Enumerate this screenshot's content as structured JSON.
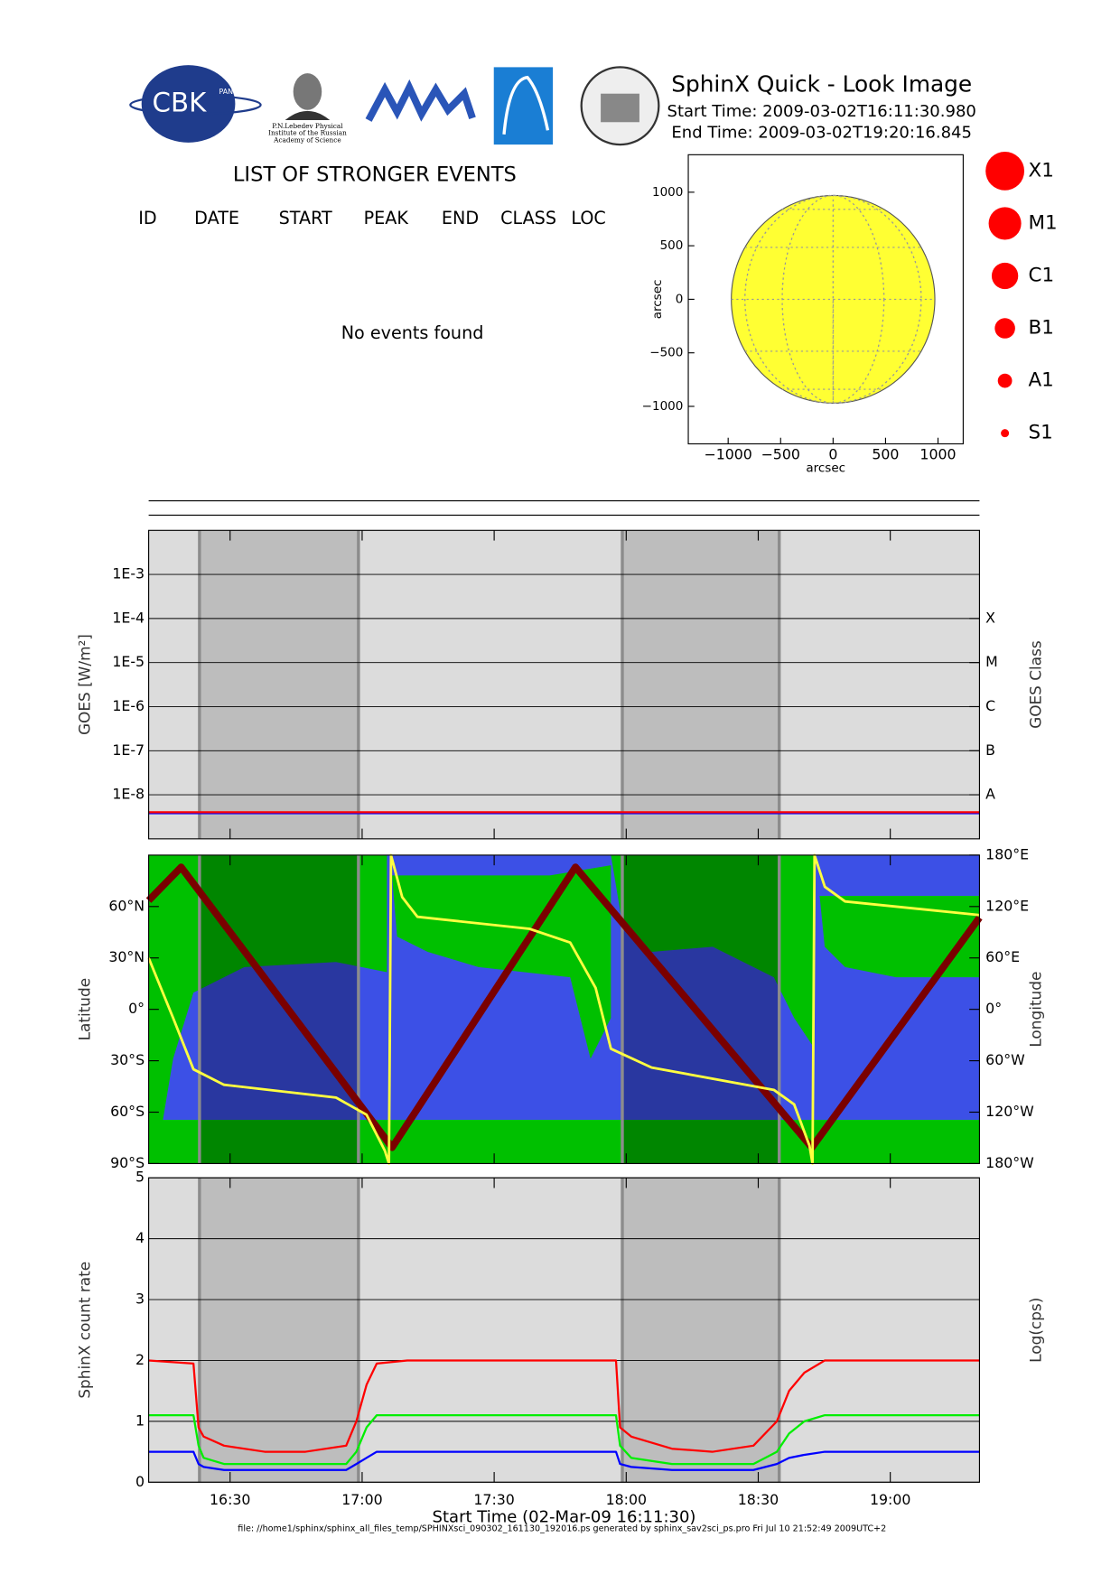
{
  "header": {
    "title": "SphinX Quick - Look Image",
    "start": "Start Time: 2009-03-02T16:11:30.980",
    "end": "End Time: 2009-03-02T19:20:16.845",
    "cbk": "CBK",
    "pan": "PAN",
    "lebedev": [
      "P.N.Lebedev Physical",
      "Institute of the Russian",
      "Academy of Science"
    ]
  },
  "events": {
    "title": "LIST OF STRONGER EVENTS",
    "columns": [
      "ID",
      "DATE",
      "START",
      "PEAK",
      "END",
      "CLASS",
      "LOC"
    ],
    "empty": "No events found"
  },
  "footer": "file: //home1/sphinx/sphinx_all_files_temp/SPHINXsci_090302_161130_192016.ps generated by sphinx_sav2sci_ps.pro Fri Jul 10 21:52:49 2009UTC+2",
  "chart_data": [
    {
      "type": "disk",
      "xlabel": "arcsec",
      "ylabel": "arcsec",
      "xlim": [
        -1380,
        1240
      ],
      "ylim": [
        -1350,
        1350
      ],
      "xticks": [
        {
          "value": -1000,
          "label": "−1000"
        },
        {
          "value": -500,
          "label": "−500"
        },
        0,
        500,
        1000
      ],
      "yticks": [
        1000,
        500,
        0,
        {
          "value": -500,
          "label": "−500"
        },
        {
          "value": -1000,
          "label": "−1000"
        }
      ],
      "radius": 970,
      "color": "#ffff33",
      "legend": [
        "X1",
        "M1",
        "C1",
        "B1",
        "A1",
        "S1"
      ],
      "legend_color": "#ff0000"
    },
    {
      "type": "line",
      "ylabel": "GOES [W/m²]",
      "y2label": "GOES Class",
      "log_y": true,
      "grid": true,
      "xlim": [
        58290,
        69616
      ],
      "ylim": [
        1e-09,
        0.01
      ],
      "yticks": [
        {
          "value": 0.001,
          "label": "1E-3"
        },
        {
          "value": 0.0001,
          "label": "1E-4"
        },
        {
          "value": 1e-05,
          "label": "1E-5"
        },
        {
          "value": 1e-06,
          "label": "1E-6"
        },
        {
          "value": 1e-07,
          "label": "1E-7"
        },
        {
          "value": 1e-08,
          "label": "1E-8"
        }
      ],
      "y2lim": [
        1e-09,
        0.01
      ],
      "y2ticks": [
        {
          "value": 0.0001,
          "label": "X"
        },
        {
          "value": 1e-05,
          "label": "M"
        },
        {
          "value": 1e-06,
          "label": "C"
        },
        {
          "value": 1e-07,
          "label": "B"
        },
        {
          "value": 1e-08,
          "label": "A"
        }
      ],
      "shaded": [
        [
          58983,
          61150
        ],
        [
          64747,
          66886
        ]
      ],
      "x": [
        58290,
        61000,
        64000,
        67000,
        69616
      ],
      "series": [
        {
          "color": "#0000ff",
          "values": [
            3.8e-09,
            3.8e-09,
            3.8e-09,
            3.8e-09,
            3.8e-09
          ]
        },
        {
          "color": "#ff0000",
          "values": [
            4e-09,
            4e-09,
            4e-09,
            4e-09,
            4e-09
          ]
        }
      ]
    },
    {
      "type": "map",
      "ylabel": "Latitude",
      "y2label": "Longitude",
      "xlim": [
        58290,
        69616
      ],
      "ylim": [
        -90,
        90
      ],
      "y2lim": [
        -180,
        180
      ],
      "yticks": [
        {
          "value": 60,
          "label": "60°N"
        },
        {
          "value": 30,
          "label": "30°N"
        },
        {
          "value": 0,
          "label": "0°"
        },
        {
          "value": -30,
          "label": "30°S"
        },
        {
          "value": -60,
          "label": "60°S"
        },
        {
          "value": -90,
          "label": "90°S"
        }
      ],
      "y2ticks": [
        {
          "value": 180,
          "label": "180°E"
        },
        {
          "value": 120,
          "label": "120°E"
        },
        {
          "value": 60,
          "label": "60°E"
        },
        {
          "value": 0,
          "label": "0°"
        },
        {
          "value": -60,
          "label": "60°W"
        },
        {
          "value": -120,
          "label": "120°W"
        },
        {
          "value": -180,
          "label": "180°W"
        }
      ],
      "shaded": [
        [
          58983,
          61150
        ],
        [
          64747,
          66886
        ]
      ],
      "series": [
        {
          "color": "#7a0000",
          "x": [
            58290,
            58733,
            61608,
            64108,
            67331,
            69616
          ],
          "values": [
            63.5,
            83,
            -80.6,
            83,
            -80.6,
            53.5
          ]
        },
        {
          "color": "#ffff40",
          "axis": "y2",
          "x": [
            58290,
            58623,
            58901,
            59317,
            60844,
            61260,
            61510,
            61566,
            61593,
            61746,
            61954,
            63481,
            64036,
            64383,
            64591,
            65147,
            66812,
            67090,
            67298,
            67340,
            67368,
            67507,
            67784,
            69616
          ],
          "values": [
            60,
            -10,
            -70,
            -88,
            -103,
            -123,
            -165,
            -180,
            180,
            131,
            108,
            94,
            78,
            25,
            -46,
            -68,
            -94,
            -111,
            -159,
            -180,
            180,
            143,
            126,
            110
          ]
        }
      ]
    },
    {
      "type": "line",
      "ylabel": "SphinX count rate",
      "y2label": "Log(cps)",
      "grid": true,
      "xlabel": "Start Time (02-Mar-09 16:11:30)",
      "xlim": [
        58290,
        69616
      ],
      "ylim": [
        0,
        5
      ],
      "yticks": [
        0,
        1,
        2,
        3,
        4,
        5
      ],
      "xticks": [
        {
          "value": 59400,
          "label": "16:30"
        },
        {
          "value": 61200,
          "label": "17:00"
        },
        {
          "value": 63000,
          "label": "17:30"
        },
        {
          "value": 64800,
          "label": "18:00"
        },
        {
          "value": 66600,
          "label": "18:30"
        },
        {
          "value": 68400,
          "label": "19:00"
        }
      ],
      "shaded": [
        [
          58983,
          61150
        ],
        [
          64747,
          66886
        ]
      ],
      "x": [
        58290,
        58901,
        58970,
        59040,
        59317,
        59872,
        60428,
        60983,
        61122,
        61260,
        61399,
        61816,
        63204,
        64661,
        64717,
        64869,
        65424,
        65980,
        66535,
        66854,
        67021,
        67229,
        67507,
        68756,
        69616
      ],
      "series": [
        {
          "color": "#ff0000",
          "values": [
            2.0,
            1.95,
            0.9,
            0.75,
            0.6,
            0.5,
            0.5,
            0.6,
            1.0,
            1.6,
            1.95,
            2.0,
            2.0,
            2.0,
            0.9,
            0.75,
            0.55,
            0.5,
            0.6,
            1.0,
            1.5,
            1.8,
            2.0,
            2.0,
            2.0
          ]
        },
        {
          "color": "#00ee00",
          "values": [
            1.1,
            1.1,
            0.6,
            0.4,
            0.3,
            0.3,
            0.3,
            0.3,
            0.5,
            0.9,
            1.1,
            1.1,
            1.1,
            1.1,
            0.6,
            0.4,
            0.3,
            0.3,
            0.3,
            0.5,
            0.8,
            1.0,
            1.1,
            1.1,
            1.1
          ]
        },
        {
          "color": "#0000ff",
          "values": [
            0.5,
            0.5,
            0.3,
            0.25,
            0.2,
            0.2,
            0.2,
            0.2,
            0.3,
            0.4,
            0.5,
            0.5,
            0.5,
            0.5,
            0.3,
            0.25,
            0.2,
            0.2,
            0.2,
            0.3,
            0.4,
            0.45,
            0.5,
            0.5,
            0.5
          ]
        }
      ]
    }
  ]
}
